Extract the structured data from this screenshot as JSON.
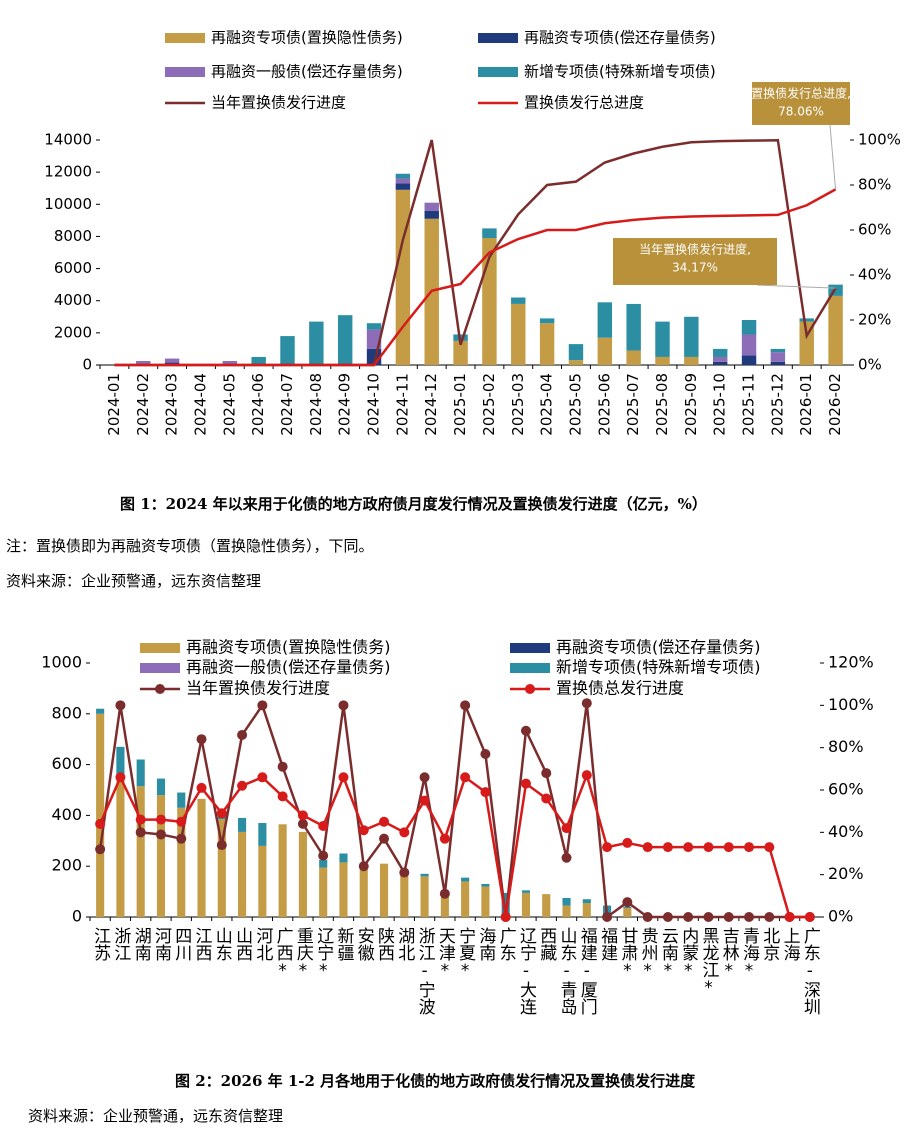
{
  "chart_data": [
    {
      "type": "bar",
      "categories": [
        "2024-01",
        "2024-02",
        "2024-03",
        "2024-04",
        "2024-05",
        "2024-06",
        "2024-07",
        "2024-08",
        "2024-09",
        "2024-10",
        "2024-11",
        "2024-12",
        "2025-01",
        "2025-02",
        "2025-03",
        "2025-04",
        "2025-05",
        "2025-06",
        "2025-07",
        "2025-08",
        "2025-09",
        "2025-10",
        "2025-11",
        "2025-12",
        "2026-01",
        "2026-02"
      ],
      "series": [
        {
          "name": "再融资专项债(置换隐性债务)",
          "color": "#c39c45",
          "type": "bar",
          "values": [
            0,
            0,
            0,
            0,
            0,
            0,
            0,
            0,
            0,
            0,
            10900,
            9100,
            1500,
            7900,
            3800,
            2600,
            300,
            1700,
            900,
            500,
            500,
            0,
            0,
            0,
            2700,
            4300
          ]
        },
        {
          "name": "再融资专项债(偿还存量债务)",
          "color": "#1f3a7d",
          "type": "bar",
          "values": [
            0,
            0,
            150,
            0,
            0,
            0,
            0,
            0,
            0,
            1000,
            400,
            500,
            0,
            0,
            0,
            0,
            0,
            0,
            0,
            0,
            0,
            200,
            600,
            200,
            0,
            0
          ]
        },
        {
          "name": "再融资一般债(偿还存量债务)",
          "color": "#8d6cb8",
          "type": "bar",
          "values": [
            0,
            250,
            250,
            50,
            250,
            0,
            0,
            0,
            0,
            1200,
            300,
            500,
            0,
            0,
            0,
            0,
            0,
            0,
            0,
            0,
            0,
            300,
            1300,
            600,
            0,
            0
          ]
        },
        {
          "name": "新增专项债(特殊新增专项债)",
          "color": "#2b8ea3",
          "type": "bar",
          "values": [
            0,
            0,
            0,
            0,
            0,
            500,
            1800,
            2700,
            3100,
            400,
            300,
            0,
            400,
            600,
            400,
            300,
            1000,
            2200,
            2900,
            2200,
            2500,
            500,
            900,
            200,
            200,
            700
          ]
        },
        {
          "name": "当年置换债发行进度",
          "color": "#7b2d2d",
          "type": "line",
          "axis": "y2",
          "values": [
            0,
            0,
            0,
            0,
            0,
            0,
            0,
            0,
            0,
            0,
            55.6,
            100,
            9,
            48,
            67,
            80,
            81.5,
            90,
            94,
            97,
            99,
            99.5,
            99.7,
            99.9,
            13,
            34.17
          ]
        },
        {
          "name": "置换债发行总进度",
          "color": "#d71a1a",
          "type": "line",
          "axis": "y2",
          "values": [
            0,
            0,
            0,
            0,
            0,
            0,
            0,
            0,
            0,
            0,
            17,
            33,
            36,
            50,
            56,
            60,
            60,
            63,
            64.5,
            65.5,
            66,
            66.3,
            66.5,
            66.7,
            71,
            78.06
          ]
        }
      ],
      "ylim": [
        0,
        14000
      ],
      "yticks": [
        0,
        2000,
        4000,
        6000,
        8000,
        10000,
        12000,
        14000
      ],
      "y2lim": [
        0,
        100
      ],
      "y2ticks": [
        {
          "value": 0,
          "label": "0%"
        },
        {
          "value": 20,
          "label": "20%"
        },
        {
          "value": 40,
          "label": "40%"
        },
        {
          "value": 60,
          "label": "60%"
        },
        {
          "value": 80,
          "label": "80%"
        },
        {
          "value": 100,
          "label": "100%"
        }
      ],
      "markers": false,
      "annotations": [
        {
          "text": [
            "置换债发行总进度,",
            "78.06%"
          ]
        },
        {
          "text": [
            "当年置换债发行进度,",
            "34.17%"
          ]
        }
      ],
      "caption": "图 1：2024 年以来用于化债的地方政府债月度发行情况及置换债发行进度（亿元，%）",
      "note": "注：置换债即为再融资专项债（置换隐性债务），下同。",
      "source": "资料来源：企业预警通，远东资信整理"
    },
    {
      "type": "bar",
      "categories": [
        "江苏",
        "浙江",
        "湖南",
        "河南",
        "四川",
        "江西",
        "山东",
        "山西",
        "河北",
        "广西*",
        "重庆*",
        "辽宁*",
        "新疆",
        "安徽",
        "陕西",
        "湖北",
        "浙江-宁波",
        "天津*",
        "宁夏*",
        "海南",
        "广东",
        "辽宁-大连",
        "西藏",
        "山东-青岛",
        "福建-厦门",
        "福建",
        "甘肃*",
        "贵州*",
        "云南*",
        "内蒙*",
        "黑龙江*",
        "吉林*",
        "青海*",
        "北京",
        "上海",
        "广东-深圳"
      ],
      "series": [
        {
          "name": "再融资专项债(置换隐性债务)",
          "color": "#c39c45",
          "type": "bar",
          "values": [
            800,
            540,
            515,
            480,
            430,
            465,
            385,
            335,
            280,
            365,
            335,
            195,
            215,
            205,
            210,
            180,
            160,
            80,
            140,
            120,
            0,
            95,
            90,
            45,
            55,
            0,
            35,
            0,
            0,
            0,
            0,
            0,
            0,
            0,
            0,
            0
          ]
        },
        {
          "name": "再融资专项债(偿还存量债务)",
          "color": "#1f3a7d",
          "type": "bar",
          "values": [
            0,
            0,
            0,
            0,
            0,
            0,
            0,
            0,
            0,
            0,
            0,
            0,
            0,
            0,
            0,
            0,
            0,
            0,
            0,
            0,
            0,
            0,
            0,
            0,
            0,
            0,
            0,
            0,
            0,
            0,
            0,
            0,
            0,
            0,
            0,
            0
          ]
        },
        {
          "name": "再融资一般债(偿还存量债务)",
          "color": "#8d6cb8",
          "type": "bar",
          "values": [
            0,
            0,
            0,
            0,
            0,
            0,
            0,
            0,
            0,
            0,
            0,
            0,
            0,
            0,
            0,
            0,
            0,
            0,
            0,
            0,
            0,
            0,
            0,
            0,
            0,
            0,
            0,
            0,
            0,
            0,
            0,
            0,
            0,
            0,
            0,
            0
          ]
        },
        {
          "name": "新增专项债(特殊新增专项债)",
          "color": "#2b8ea3",
          "type": "bar",
          "values": [
            20,
            130,
            105,
            65,
            60,
            0,
            30,
            55,
            90,
            0,
            0,
            30,
            35,
            0,
            0,
            0,
            10,
            10,
            15,
            10,
            95,
            10,
            0,
            30,
            15,
            45,
            5,
            0,
            0,
            0,
            0,
            0,
            0,
            0,
            0,
            0
          ]
        },
        {
          "name": "当年置换债发行进度",
          "color": "#7b2d2d",
          "type": "line",
          "axis": "y2",
          "values": [
            32,
            100,
            40,
            39,
            37,
            84,
            34,
            86,
            100,
            71,
            44,
            29,
            100,
            24,
            37,
            21,
            66,
            11,
            100,
            77,
            0,
            88,
            68,
            28,
            101,
            0,
            7,
            0,
            0,
            0,
            0,
            0,
            0,
            0,
            0,
            0
          ]
        },
        {
          "name": "置换债总发行进度",
          "color": "#d71a1a",
          "type": "line",
          "axis": "y2",
          "values": [
            44,
            66,
            46,
            46,
            45,
            61,
            49,
            62,
            66,
            57,
            48,
            43,
            66,
            41,
            45,
            40,
            55,
            37,
            66,
            59,
            0,
            63,
            56,
            42,
            67,
            33,
            35,
            33,
            33,
            33,
            33,
            33,
            33,
            33,
            0,
            0
          ]
        }
      ],
      "ylim": [
        0,
        1000
      ],
      "yticks": [
        0,
        200,
        400,
        600,
        800,
        1000
      ],
      "y2lim": [
        0,
        120
      ],
      "y2ticks": [
        {
          "value": 0,
          "label": "0%"
        },
        {
          "value": 20,
          "label": "20%"
        },
        {
          "value": 40,
          "label": "40%"
        },
        {
          "value": 60,
          "label": "60%"
        },
        {
          "value": 80,
          "label": "80%"
        },
        {
          "value": 100,
          "label": "100%"
        },
        {
          "value": 120,
          "label": "120%"
        }
      ],
      "markers": true,
      "caption": "图 2：2026 年 1-2 月各地用于化债的地方政府债发行情况及置换债发行进度",
      "source": "资料来源：企业预警通，远东资信整理"
    }
  ]
}
